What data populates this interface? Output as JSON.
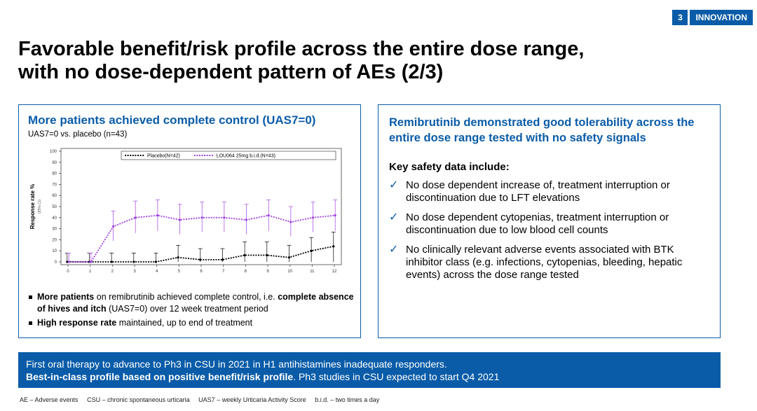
{
  "badge": {
    "number": "3",
    "label": "INNOVATION"
  },
  "title": {
    "line1": "Favorable benefit/risk profile across the entire dose range,",
    "line2": "with no dose-dependent pattern of AEs (2/3)"
  },
  "left_panel": {
    "heading": "More patients achieved complete control (UAS7=0)",
    "subheading": "UAS7=0 vs. placebo (n=43)",
    "bullets": [
      {
        "b1": "More patients",
        "t1": " on remibrutinib achieved complete control, i.e. ",
        "b2": "complete absence of hives and itch",
        "t2": " (UAS7=0) over 12 week treatment period"
      },
      {
        "b1": "High response rate",
        "t1": " maintained, up to end of treatment"
      }
    ]
  },
  "chart_data": {
    "type": "line",
    "ylabel": "Response rate %",
    "ylabel_sub": "(95% CI)",
    "x": [
      0,
      1,
      2,
      3,
      4,
      5,
      6,
      7,
      8,
      9,
      10,
      11,
      12
    ],
    "ylim": [
      0,
      100
    ],
    "yticks": [
      0,
      10,
      20,
      30,
      40,
      50,
      60,
      70,
      80,
      90,
      100
    ],
    "legend_position": "top-right",
    "series": [
      {
        "name": "Placebo(N=42)",
        "color": "#000000",
        "values": [
          0,
          0,
          0,
          0,
          0,
          4,
          2,
          2,
          6,
          6,
          4,
          10,
          14
        ],
        "ci_low": [
          0,
          0,
          0,
          0,
          0,
          0,
          0,
          0,
          0,
          0,
          0,
          0,
          0
        ],
        "ci_high": [
          8,
          8,
          8,
          8,
          8,
          15,
          12,
          12,
          18,
          18,
          15,
          22,
          27
        ]
      },
      {
        "name": "LOU064 25mg b.i.d.(N=43)",
        "color": "#a040e0",
        "values": [
          0,
          0,
          32,
          40,
          42,
          38,
          40,
          40,
          38,
          42,
          36,
          40,
          42
        ],
        "ci_low": [
          0,
          0,
          19,
          26,
          28,
          25,
          27,
          27,
          25,
          28,
          23,
          27,
          28
        ],
        "ci_high": [
          8,
          8,
          46,
          55,
          56,
          52,
          54,
          54,
          52,
          56,
          50,
          54,
          56
        ]
      }
    ]
  },
  "right_panel": {
    "heading": "Remibrutinib demonstrated good tolerability across the entire dose range tested with no safety signals",
    "key_title": "Key safety data include:",
    "check_icon": "✓",
    "items": [
      "No dose dependent increase of, treatment interruption or discontinuation due to LFT elevations",
      "No dose dependent cytopenias, treatment interruption or discontinuation due to low blood cell counts",
      "No clinically relevant adverse events associated with BTK inhibitor class (e.g. infections, cytopenias, bleeding, hepatic events) across the dose range tested"
    ]
  },
  "bottom_bar": {
    "line1": "First oral therapy to advance to Ph3 in CSU in 2021 in H1 antihistamines inadequate responders.",
    "line2_bold": "Best-in-class profile based on positive benefit/risk profile",
    "line2_rest": ". Ph3 studies in CSU expected to start Q4 2021"
  },
  "footnotes": [
    "AE – Adverse events",
    "CSU – chronic spontaneous urticaria",
    "UAS7 – weekly Urticaria Activity Score",
    "b.i.d. – two times a day"
  ],
  "colors": {
    "brand_blue": "#0a5ca8"
  }
}
